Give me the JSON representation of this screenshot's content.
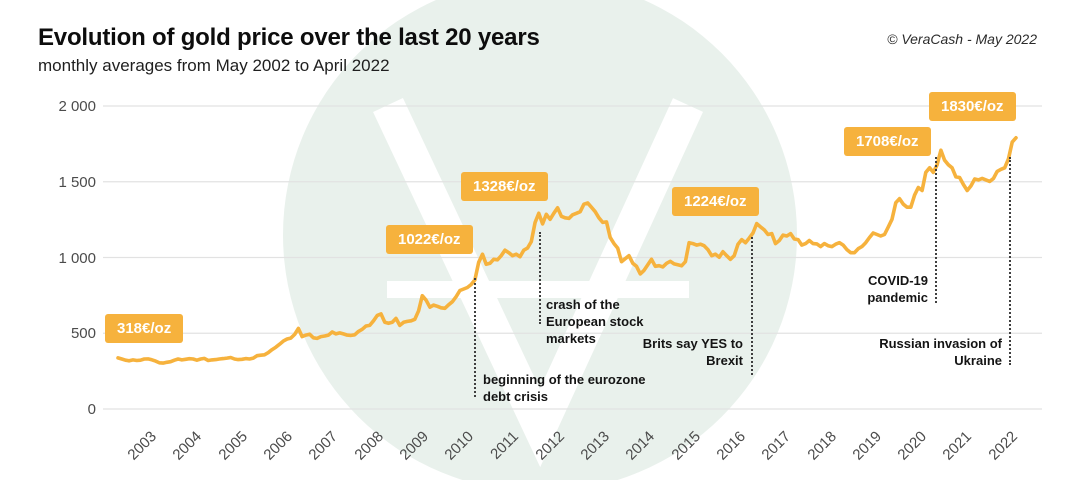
{
  "header": {
    "title": "Evolution of gold price over the last 20 years",
    "subtitle": "monthly averages from May 2002 to April 2022",
    "copyright": "© VeraCash - May 2022"
  },
  "colors": {
    "accent_gold": "#f6b23d",
    "watermark_green": "#e9f1ec",
    "watermark_glyph": "#ffffff",
    "grid": "#e2e2e2",
    "axis_text": "#4b4b4b",
    "annotation_text": "#141414"
  },
  "chart_data": {
    "type": "line",
    "title": "Evolution of gold price over the last 20 years",
    "subtitle": "monthly averages from May 2002 to April 2022",
    "series_name": "Gold price, monthly average (EUR/oz)",
    "x_start": "May 2002",
    "x_end": "April 2022",
    "ylim": [
      0,
      2000
    ],
    "grid": "horizontal-only",
    "yticks": [
      {
        "value": 2000,
        "label": "2 000"
      },
      {
        "value": 1500,
        "label": "1 500"
      },
      {
        "value": 1000,
        "label": "1 000"
      },
      {
        "value": 500,
        "label": "500"
      },
      {
        "value": 0,
        "label": "0"
      }
    ],
    "xticks": [
      "2003",
      "2004",
      "2005",
      "2006",
      "2007",
      "2008",
      "2009",
      "2010",
      "2011",
      "2012",
      "2013",
      "2014",
      "2015",
      "2016",
      "2017",
      "2018",
      "2019",
      "2020",
      "2021",
      "2022"
    ],
    "monthly_values": [
      337,
      330,
      322,
      318,
      324,
      320,
      322,
      330,
      331,
      325,
      316,
      305,
      303,
      308,
      312,
      322,
      330,
      324,
      328,
      332,
      330,
      322,
      330,
      334,
      320,
      324,
      326,
      330,
      333,
      336,
      340,
      330,
      326,
      328,
      333,
      330,
      336,
      352,
      355,
      358,
      372,
      392,
      408,
      428,
      448,
      462,
      468,
      492,
      532,
      478,
      488,
      494,
      470,
      466,
      478,
      482,
      488,
      508,
      496,
      502,
      496,
      488,
      486,
      490,
      512,
      526,
      548,
      552,
      582,
      618,
      628,
      572,
      566,
      572,
      598,
      552,
      572,
      578,
      582,
      592,
      648,
      748,
      718,
      672,
      686,
      678,
      668,
      665,
      688,
      708,
      742,
      782,
      792,
      802,
      822,
      852,
      968,
      1022,
      955,
      962,
      988,
      985,
      1012,
      1048,
      1032,
      1012,
      1022,
      1005,
      1048,
      1062,
      1105,
      1232,
      1292,
      1222,
      1285,
      1252,
      1292,
      1328,
      1272,
      1262,
      1258,
      1282,
      1292,
      1302,
      1352,
      1360,
      1332,
      1302,
      1262,
      1232,
      1235,
      1132,
      1092,
      1062,
      972,
      992,
      1012,
      962,
      942,
      892,
      915,
      952,
      988,
      942,
      946,
      938,
      962,
      975,
      958,
      952,
      945,
      972,
      1098,
      1092,
      1082,
      1088,
      1078,
      1052,
      1012,
      1022,
      1002,
      1038,
      1012,
      988,
      1012,
      1088,
      1118,
      1098,
      1128,
      1162,
      1224,
      1202,
      1182,
      1152,
      1158,
      1092,
      1112,
      1148,
      1142,
      1158,
      1122,
      1118,
      1082,
      1092,
      1112,
      1092,
      1090,
      1072,
      1092,
      1078,
      1072,
      1088,
      1098,
      1082,
      1052,
      1032,
      1032,
      1058,
      1072,
      1098,
      1132,
      1162,
      1152,
      1142,
      1152,
      1202,
      1252,
      1362,
      1388,
      1352,
      1332,
      1332,
      1412,
      1462,
      1442,
      1562,
      1592,
      1562,
      1612,
      1708,
      1642,
      1612,
      1592,
      1532,
      1528,
      1482,
      1442,
      1472,
      1518,
      1512,
      1522,
      1512,
      1502,
      1522,
      1568,
      1582,
      1592,
      1652,
      1762,
      1790
    ]
  },
  "price_callouts": [
    {
      "text": "318€/oz"
    },
    {
      "text": "1022€/oz"
    },
    {
      "text": "1328€/oz"
    },
    {
      "text": "1224€/oz"
    },
    {
      "text": "1708€/oz"
    },
    {
      "text": "1830€/oz"
    }
  ],
  "events": [
    {
      "text": "beginning of the eurozone\ndebt crisis"
    },
    {
      "text": "crash of the\nEuropean stock\nmarkets"
    },
    {
      "text": "Brits say YES to\nBrexit"
    },
    {
      "text": "COVID-19\npandemic"
    },
    {
      "text": "Russian invasion of\nUkraine"
    }
  ]
}
